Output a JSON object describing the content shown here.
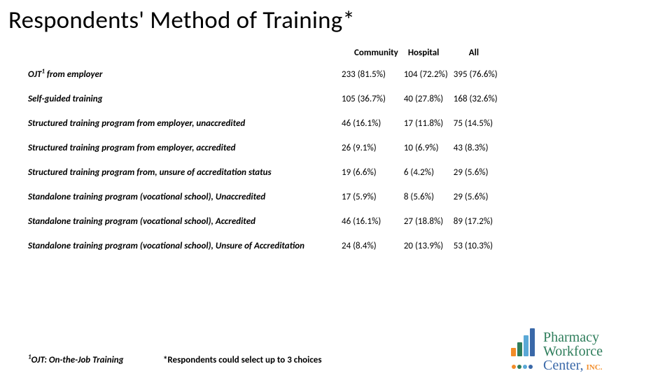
{
  "title": "Respondents' Method of Training*",
  "table": {
    "headers": {
      "c1": "Community",
      "c2": "Hospital",
      "c3": "All"
    },
    "rows": [
      {
        "label_html": "OJT<sup>1</sup> from employer",
        "c1": "233 (81.5%)",
        "c2": "104 (72.2%)",
        "c3": "395 (76.6%)"
      },
      {
        "label_html": "Self-guided training",
        "c1": "105 (36.7%)",
        "c2": "40 (27.8%)",
        "c3": "168 (32.6%)"
      },
      {
        "label_html": "Structured training program from employer, unaccredited",
        "c1": "46 (16.1%)",
        "c2": "17 (11.8%)",
        "c3": "75 (14.5%)"
      },
      {
        "label_html": "Structured training program from employer, accredited",
        "c1": "26 (9.1%)",
        "c2": "10 (6.9%)",
        "c3": "43 (8.3%)"
      },
      {
        "label_html": "Structured training program from, unsure of accreditation status",
        "c1": "19 (6.6%)",
        "c2": "6 (4.2%)",
        "c3": "29 (5.6%)"
      },
      {
        "label_html": "Standalone training program (vocational school), Unaccredited",
        "c1": "17 (5.9%)",
        "c2": "8 (5.6%)",
        "c3": "29 (5.6%)"
      },
      {
        "label_html": "Standalone training program (vocational school), Accredited",
        "c1": "46 (16.1%)",
        "c2": "27 (18.8%)",
        "c3": "89 (17.2%)"
      },
      {
        "label_html": "Standalone training program (vocational school), Unsure of Accreditation",
        "c1": "24 (8.4%)",
        "c2": "20 (13.9%)",
        "c3": "53 (10.3%)"
      }
    ]
  },
  "footnotes": {
    "left_html": "<sup>1</sup>OJT:  On-the-Job Training",
    "right": "*Respondents could select up to 3 choices"
  },
  "logo": {
    "line1": "Pharmacy",
    "line2": "Workforce",
    "line3": "Center,",
    "inc": "INC."
  }
}
